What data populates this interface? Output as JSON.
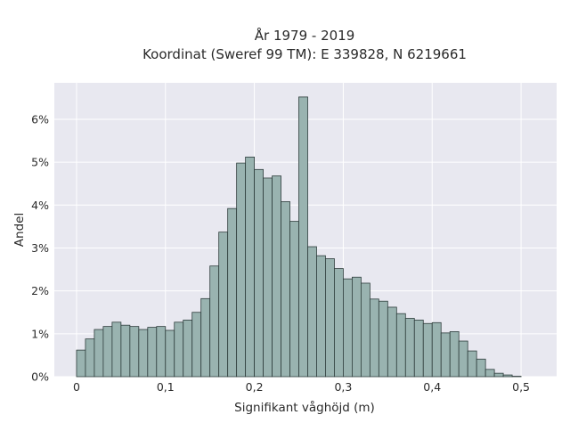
{
  "chart_data": {
    "type": "bar",
    "title_lines": [
      "År 1979 - 2019",
      "Koordinat (Sweref 99 TM): E 339828, N 6219661"
    ],
    "xlabel": "Signifikant våghöjd (m)",
    "ylabel": "Andel",
    "xlim": [
      -0.025,
      0.54
    ],
    "ylim": [
      0,
      6.85
    ],
    "x_ticks": [
      0,
      0.1,
      0.2,
      0.3,
      0.4,
      0.5
    ],
    "x_tick_labels": [
      "0",
      "0,1",
      "0,2",
      "0,3",
      "0,4",
      "0,5"
    ],
    "y_ticks": [
      0,
      1,
      2,
      3,
      4,
      5,
      6
    ],
    "y_tick_labels": [
      "0%",
      "1%",
      "2%",
      "3%",
      "4%",
      "5%",
      "6%"
    ],
    "bin_width": 0.01,
    "bin_starts": [
      0.0,
      0.01,
      0.02,
      0.03,
      0.04,
      0.05,
      0.06,
      0.07,
      0.08,
      0.09,
      0.1,
      0.11,
      0.12,
      0.13,
      0.14,
      0.15,
      0.16,
      0.17,
      0.18,
      0.19,
      0.2,
      0.21,
      0.22,
      0.23,
      0.24,
      0.25,
      0.26,
      0.27,
      0.28,
      0.29,
      0.3,
      0.31,
      0.32,
      0.33,
      0.34,
      0.35,
      0.36,
      0.37,
      0.38,
      0.39,
      0.4,
      0.41,
      0.42,
      0.43,
      0.44,
      0.45,
      0.46,
      0.47,
      0.48,
      0.49,
      0.5,
      0.51
    ],
    "values": [
      0.62,
      0.88,
      1.1,
      1.17,
      1.27,
      1.2,
      1.17,
      1.1,
      1.15,
      1.17,
      1.08,
      1.27,
      1.32,
      1.5,
      1.82,
      2.58,
      3.37,
      3.92,
      4.98,
      5.12,
      4.83,
      4.63,
      4.68,
      4.08,
      3.62,
      6.52,
      3.03,
      2.82,
      2.75,
      2.52,
      2.28,
      2.32,
      2.18,
      1.81,
      1.76,
      1.62,
      1.47,
      1.36,
      1.32,
      1.24,
      1.26,
      1.02,
      1.05,
      0.83,
      0.6,
      0.41,
      0.17,
      0.08,
      0.04,
      0.01,
      0.0,
      0.0
    ],
    "bar_color": "#99b3b0",
    "bar_edge_color": "#2e3d3c",
    "plot_background": "#e8e8f0",
    "grid": true,
    "grid_color": "#ffffff"
  }
}
